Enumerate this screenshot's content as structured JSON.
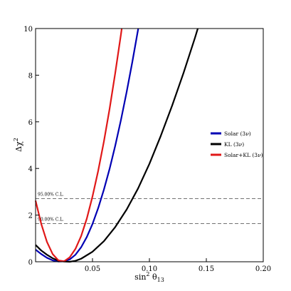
{
  "chart_data": {
    "type": "line",
    "xlabel_main": "sin",
    "xlabel_sup": "2",
    "xlabel_theta": " θ",
    "xlabel_sub": "13",
    "ylabel_main": "Δχ",
    "ylabel_sup": "2",
    "xlim": [
      0,
      0.2
    ],
    "ylim": [
      0,
      10
    ],
    "x_ticks": [
      {
        "value": 0.05,
        "label": "0.05"
      },
      {
        "value": 0.1,
        "label": "0.10"
      },
      {
        "value": 0.15,
        "label": "0.15"
      },
      {
        "value": 0.2,
        "label": "0.20"
      }
    ],
    "y_ticks": [
      {
        "value": 0,
        "label": "0"
      },
      {
        "value": 2,
        "label": "2"
      },
      {
        "value": 4,
        "label": "4"
      },
      {
        "value": 6,
        "label": "6"
      },
      {
        "value": 8,
        "label": "8"
      },
      {
        "value": 10,
        "label": "10"
      }
    ],
    "reference_lines": [
      {
        "y": 2.71,
        "label": "95.00% C.L."
      },
      {
        "y": 1.64,
        "label": "90.00% C.L."
      }
    ],
    "legend_position": "right",
    "series": [
      {
        "name": "Solar (3",
        "name_nu": "ν",
        "name_close": ")",
        "color": "#0000b4",
        "points": [
          [
            0.0,
            0.52
          ],
          [
            0.005,
            0.33
          ],
          [
            0.01,
            0.17
          ],
          [
            0.015,
            0.06
          ],
          [
            0.02,
            0.01
          ],
          [
            0.025,
            0.02
          ],
          [
            0.03,
            0.1
          ],
          [
            0.035,
            0.3
          ],
          [
            0.04,
            0.62
          ],
          [
            0.045,
            1.06
          ],
          [
            0.05,
            1.62
          ],
          [
            0.055,
            2.3
          ],
          [
            0.06,
            3.09
          ],
          [
            0.065,
            3.98
          ],
          [
            0.07,
            4.98
          ],
          [
            0.075,
            6.08
          ],
          [
            0.08,
            7.28
          ],
          [
            0.085,
            8.57
          ],
          [
            0.0902,
            10.0
          ]
        ]
      },
      {
        "name": "KL (3",
        "name_nu": "ν",
        "name_close": ")",
        "color": "#000000",
        "points": [
          [
            0.0,
            0.72
          ],
          [
            0.005,
            0.48
          ],
          [
            0.01,
            0.3
          ],
          [
            0.015,
            0.15
          ],
          [
            0.02,
            0.05
          ],
          [
            0.025,
            0.01
          ],
          [
            0.03,
            0.0
          ],
          [
            0.035,
            0.04
          ],
          [
            0.04,
            0.13
          ],
          [
            0.05,
            0.43
          ],
          [
            0.06,
            0.88
          ],
          [
            0.07,
            1.49
          ],
          [
            0.08,
            2.24
          ],
          [
            0.09,
            3.14
          ],
          [
            0.1,
            4.2
          ],
          [
            0.11,
            5.4
          ],
          [
            0.12,
            6.7
          ],
          [
            0.13,
            8.1
          ],
          [
            0.14,
            9.6
          ],
          [
            0.1425,
            10.0
          ]
        ]
      },
      {
        "name": "Solar+KL (3",
        "name_nu": "ν",
        "name_close": ")",
        "color": "#e01818",
        "points": [
          [
            0.0,
            2.62
          ],
          [
            0.005,
            1.62
          ],
          [
            0.01,
            0.85
          ],
          [
            0.015,
            0.33
          ],
          [
            0.02,
            0.06
          ],
          [
            0.025,
            0.02
          ],
          [
            0.03,
            0.19
          ],
          [
            0.035,
            0.55
          ],
          [
            0.04,
            1.1
          ],
          [
            0.045,
            1.85
          ],
          [
            0.05,
            2.8
          ],
          [
            0.055,
            3.9
          ],
          [
            0.06,
            5.15
          ],
          [
            0.065,
            6.55
          ],
          [
            0.07,
            8.1
          ],
          [
            0.075,
            9.75
          ],
          [
            0.0757,
            10.0
          ]
        ]
      }
    ]
  }
}
